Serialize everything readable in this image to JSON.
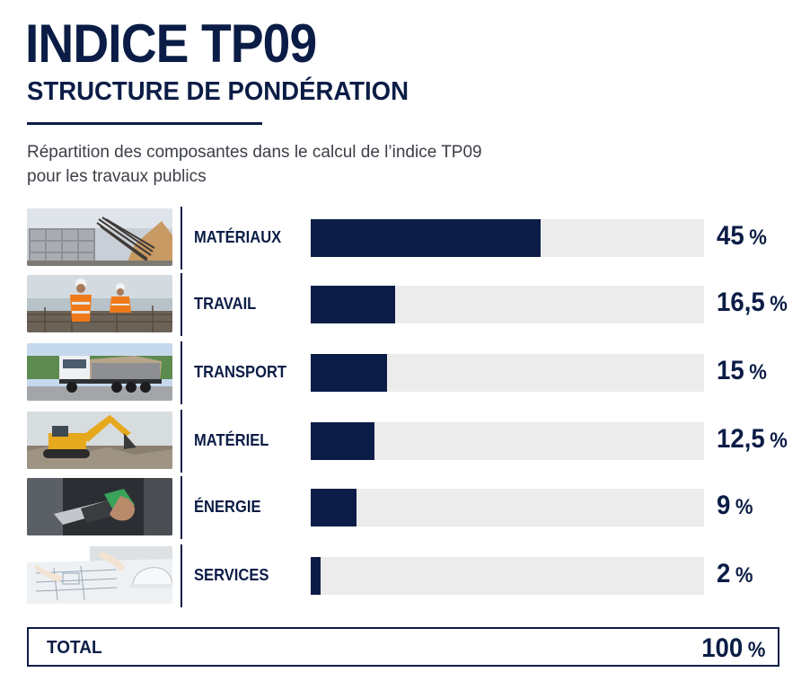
{
  "header": {
    "title": "INDICE TP09",
    "subtitle": "STRUCTURE DE PONDÉRATION",
    "description": "Répartition des composantes dans le calcul de l’indice TP09 pour les travaux publics"
  },
  "colors": {
    "accent": "#0b1d46",
    "track": "#ececec"
  },
  "chart_data": {
    "type": "bar",
    "orientation": "horizontal",
    "categories": [
      "MATÉRIAUX",
      "TRAVAIL",
      "TRANSPORT",
      "MATÉRIEL",
      "ÉNERGIE",
      "SERVICES"
    ],
    "values": [
      45,
      16.5,
      15,
      12.5,
      9,
      2
    ],
    "value_labels": [
      "45",
      "16,5",
      "15",
      "12,5",
      "9",
      "2"
    ],
    "unit": "%",
    "xlim": [
      0,
      77
    ],
    "photos": [
      "building-materials-photo",
      "construction-workers-photo",
      "dump-truck-photo",
      "excavator-photo",
      "fuel-nozzle-photo",
      "engineering-plans-photo"
    ]
  },
  "total": {
    "label": "TOTAL",
    "value": "100",
    "unit": "%"
  }
}
